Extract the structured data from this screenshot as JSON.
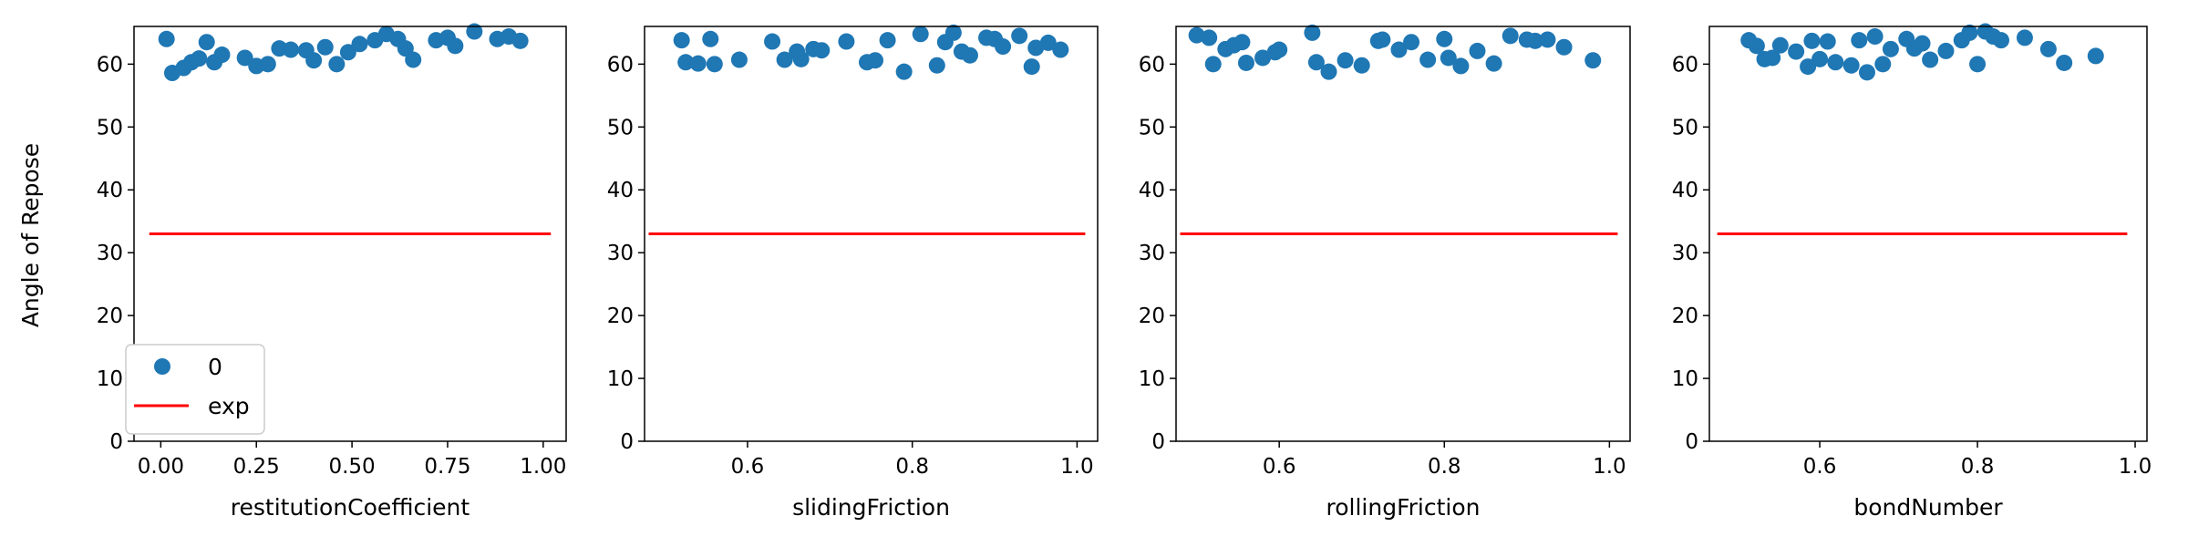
{
  "figure": {
    "ylabel": "Angle of Repose",
    "scatter_color": "#1f77b4",
    "line_color": "#ff0000"
  },
  "legend": {
    "entries": [
      {
        "label": "0",
        "kind": "marker"
      },
      {
        "label": "exp",
        "kind": "line"
      }
    ],
    "placement": "lower-left"
  },
  "chart_data": [
    {
      "type": "scatter",
      "title": "",
      "xlabel": "restitutionCoefficient",
      "ylabel": "Angle of Repose",
      "xlim": [
        -0.07,
        1.06
      ],
      "ylim": [
        0,
        66
      ],
      "xticks": [
        0.0,
        0.25,
        0.5,
        0.75,
        1.0
      ],
      "xtick_labels": [
        "0.00",
        "0.25",
        "0.50",
        "0.75",
        "1.00"
      ],
      "yticks": [
        0,
        10,
        20,
        30,
        40,
        50,
        60
      ],
      "ytick_labels": [
        "0",
        "10",
        "20",
        "30",
        "40",
        "50",
        "60"
      ],
      "grid": false,
      "legend": true,
      "series": [
        {
          "name": "0",
          "kind": "scatter",
          "x": [
            0.015,
            0.03,
            0.06,
            0.08,
            0.1,
            0.12,
            0.14,
            0.16,
            0.22,
            0.25,
            0.28,
            0.31,
            0.34,
            0.38,
            0.4,
            0.43,
            0.46,
            0.49,
            0.52,
            0.56,
            0.59,
            0.62,
            0.64,
            0.66,
            0.72,
            0.75,
            0.77,
            0.82,
            0.88,
            0.91,
            0.94
          ],
          "y": [
            64.0,
            58.6,
            59.4,
            60.3,
            60.9,
            63.5,
            60.3,
            61.5,
            61.0,
            59.7,
            60.0,
            62.5,
            62.3,
            62.2,
            60.6,
            62.7,
            60.0,
            61.9,
            63.2,
            63.8,
            64.8,
            64.0,
            62.5,
            60.7,
            63.8,
            64.2,
            62.9,
            65.2,
            64.0,
            64.4,
            63.7
          ]
        },
        {
          "name": "exp",
          "kind": "line",
          "x": [
            -0.03,
            1.02
          ],
          "y": [
            33.0,
            33.0
          ]
        }
      ]
    },
    {
      "type": "scatter",
      "title": "",
      "xlabel": "slidingFriction",
      "ylabel": "",
      "xlim": [
        0.475,
        1.025
      ],
      "ylim": [
        0,
        66
      ],
      "xticks": [
        0.6,
        0.8,
        1.0
      ],
      "xtick_labels": [
        "0.6",
        "0.8",
        "1.0"
      ],
      "yticks": [
        0,
        10,
        20,
        30,
        40,
        50,
        60
      ],
      "ytick_labels": [
        "0",
        "10",
        "20",
        "30",
        "40",
        "50",
        "60"
      ],
      "grid": false,
      "legend": false,
      "series": [
        {
          "name": "0",
          "kind": "scatter",
          "x": [
            0.52,
            0.525,
            0.54,
            0.555,
            0.56,
            0.59,
            0.63,
            0.645,
            0.66,
            0.665,
            0.68,
            0.69,
            0.72,
            0.745,
            0.755,
            0.77,
            0.79,
            0.81,
            0.83,
            0.84,
            0.85,
            0.86,
            0.87,
            0.89,
            0.9,
            0.91,
            0.93,
            0.945,
            0.95,
            0.965,
            0.98
          ],
          "y": [
            63.8,
            60.3,
            60.1,
            64.0,
            60.0,
            60.7,
            63.6,
            60.7,
            62.0,
            60.8,
            62.4,
            62.2,
            63.6,
            60.3,
            60.6,
            63.8,
            58.8,
            64.8,
            59.8,
            63.5,
            65.0,
            62.0,
            61.4,
            64.2,
            64.0,
            62.8,
            64.5,
            59.6,
            62.6,
            63.4,
            62.3
          ]
        },
        {
          "name": "exp",
          "kind": "line",
          "x": [
            0.48,
            1.01
          ],
          "y": [
            33.0,
            33.0
          ]
        }
      ]
    },
    {
      "type": "scatter",
      "title": "",
      "xlabel": "rollingFriction",
      "ylabel": "",
      "xlim": [
        0.475,
        1.025
      ],
      "ylim": [
        0,
        66
      ],
      "xticks": [
        0.6,
        0.8,
        1.0
      ],
      "xtick_labels": [
        "0.6",
        "0.8",
        "1.0"
      ],
      "yticks": [
        0,
        10,
        20,
        30,
        40,
        50,
        60
      ],
      "ytick_labels": [
        "0",
        "10",
        "20",
        "30",
        "40",
        "50",
        "60"
      ],
      "grid": false,
      "legend": false,
      "series": [
        {
          "name": "0",
          "kind": "scatter",
          "x": [
            0.5,
            0.515,
            0.52,
            0.535,
            0.545,
            0.555,
            0.56,
            0.58,
            0.595,
            0.6,
            0.64,
            0.645,
            0.66,
            0.68,
            0.7,
            0.72,
            0.725,
            0.745,
            0.76,
            0.78,
            0.8,
            0.805,
            0.82,
            0.84,
            0.86,
            0.88,
            0.9,
            0.91,
            0.925,
            0.945,
            0.98
          ],
          "y": [
            64.6,
            64.2,
            60.0,
            62.4,
            63.0,
            63.5,
            60.2,
            61.0,
            61.9,
            62.3,
            65.0,
            60.3,
            58.8,
            60.6,
            59.8,
            63.7,
            63.9,
            62.3,
            63.5,
            60.7,
            64.0,
            61.0,
            59.7,
            62.1,
            60.1,
            64.5,
            63.9,
            63.7,
            63.9,
            62.7,
            60.6
          ]
        },
        {
          "name": "exp",
          "kind": "line",
          "x": [
            0.48,
            1.01
          ],
          "y": [
            33.0,
            33.0
          ]
        }
      ]
    },
    {
      "type": "scatter",
      "title": "",
      "xlabel": "bondNumber",
      "ylabel": "",
      "xlim": [
        0.46,
        1.015
      ],
      "ylim": [
        0,
        66
      ],
      "xticks": [
        0.6,
        0.8,
        1.0
      ],
      "xtick_labels": [
        "0.6",
        "0.8",
        "1.0"
      ],
      "yticks": [
        0,
        10,
        20,
        30,
        40,
        50,
        60
      ],
      "ytick_labels": [
        "0",
        "10",
        "20",
        "30",
        "40",
        "50",
        "60"
      ],
      "grid": false,
      "legend": false,
      "series": [
        {
          "name": "0",
          "kind": "scatter",
          "x": [
            0.51,
            0.52,
            0.53,
            0.54,
            0.55,
            0.57,
            0.585,
            0.59,
            0.6,
            0.61,
            0.62,
            0.64,
            0.65,
            0.66,
            0.67,
            0.68,
            0.69,
            0.71,
            0.72,
            0.73,
            0.74,
            0.76,
            0.78,
            0.79,
            0.8,
            0.81,
            0.82,
            0.83,
            0.86,
            0.89,
            0.91,
            0.95
          ],
          "y": [
            63.8,
            62.9,
            60.8,
            61.0,
            63.0,
            62.0,
            59.6,
            63.7,
            60.8,
            63.6,
            60.3,
            59.8,
            63.8,
            58.7,
            64.4,
            60.0,
            62.4,
            64.0,
            62.5,
            63.3,
            60.7,
            62.1,
            63.8,
            65.0,
            60.0,
            65.2,
            64.4,
            63.8,
            64.2,
            62.4,
            60.2,
            61.3
          ]
        },
        {
          "name": "exp",
          "kind": "line",
          "x": [
            0.47,
            0.99
          ],
          "y": [
            33.0,
            33.0
          ]
        }
      ]
    }
  ]
}
